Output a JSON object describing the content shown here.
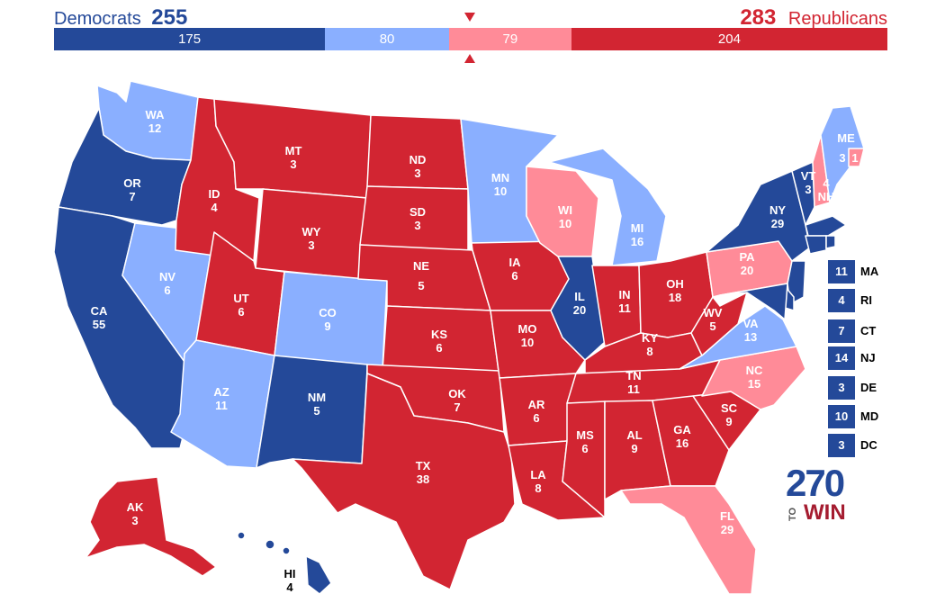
{
  "header": {
    "dem_name": "Democrats",
    "dem_total": "255",
    "rep_total": "283",
    "rep_name": "Republicans"
  },
  "bar": [
    {
      "label": "175",
      "value": 175,
      "color": "#244999"
    },
    {
      "label": "80",
      "value": 80,
      "color": "#8aafff"
    },
    {
      "label": "79",
      "value": 79,
      "color": "#ff8b98"
    },
    {
      "label": "204",
      "value": 204,
      "color": "#d22532"
    }
  ],
  "colors": {
    "safe_dem": "#244999",
    "lean_dem": "#8aafff",
    "lean_rep": "#ff8b98",
    "safe_rep": "#d22532"
  },
  "states": {
    "WA": {
      "abbr": "WA",
      "ev": "12"
    },
    "OR": {
      "abbr": "OR",
      "ev": "7"
    },
    "CA": {
      "abbr": "CA",
      "ev": "55"
    },
    "NV": {
      "abbr": "NV",
      "ev": "6"
    },
    "ID": {
      "abbr": "ID",
      "ev": "4"
    },
    "MT": {
      "abbr": "MT",
      "ev": "3"
    },
    "WY": {
      "abbr": "WY",
      "ev": "3"
    },
    "UT": {
      "abbr": "UT",
      "ev": "6"
    },
    "AZ": {
      "abbr": "AZ",
      "ev": "11"
    },
    "CO": {
      "abbr": "CO",
      "ev": "9"
    },
    "NM": {
      "abbr": "NM",
      "ev": "5"
    },
    "ND": {
      "abbr": "ND",
      "ev": "3"
    },
    "SD": {
      "abbr": "SD",
      "ev": "3"
    },
    "NE": {
      "abbr": "NE",
      "ev": "5"
    },
    "KS": {
      "abbr": "KS",
      "ev": "6"
    },
    "OK": {
      "abbr": "OK",
      "ev": "7"
    },
    "TX": {
      "abbr": "TX",
      "ev": "38"
    },
    "MN": {
      "abbr": "MN",
      "ev": "10"
    },
    "IA": {
      "abbr": "IA",
      "ev": "6"
    },
    "MO": {
      "abbr": "MO",
      "ev": "10"
    },
    "AR": {
      "abbr": "AR",
      "ev": "6"
    },
    "LA": {
      "abbr": "LA",
      "ev": "8"
    },
    "WI": {
      "abbr": "WI",
      "ev": "10"
    },
    "IL": {
      "abbr": "IL",
      "ev": "20"
    },
    "MI": {
      "abbr": "MI",
      "ev": "16"
    },
    "IN": {
      "abbr": "IN",
      "ev": "11"
    },
    "OH": {
      "abbr": "OH",
      "ev": "18"
    },
    "KY": {
      "abbr": "KY",
      "ev": "8"
    },
    "TN": {
      "abbr": "TN",
      "ev": "11"
    },
    "MS": {
      "abbr": "MS",
      "ev": "6"
    },
    "AL": {
      "abbr": "AL",
      "ev": "9"
    },
    "GA": {
      "abbr": "GA",
      "ev": "16"
    },
    "FL": {
      "abbr": "FL",
      "ev": "29"
    },
    "SC": {
      "abbr": "SC",
      "ev": "9"
    },
    "NC": {
      "abbr": "NC",
      "ev": "15"
    },
    "VA": {
      "abbr": "VA",
      "ev": "13"
    },
    "WV": {
      "abbr": "WV",
      "ev": "5"
    },
    "PA": {
      "abbr": "PA",
      "ev": "20"
    },
    "NY": {
      "abbr": "NY",
      "ev": "29"
    },
    "VT": {
      "abbr": "VT",
      "ev": "3"
    },
    "NH": {
      "abbr": "NH",
      "ev": "4"
    },
    "ME": {
      "abbr": "ME",
      "ev": "3"
    },
    "ME2": {
      "ev": "1"
    },
    "AK": {
      "abbr": "AK",
      "ev": "3"
    },
    "HI": {
      "abbr": "HI",
      "ev": "4"
    }
  },
  "small_states": [
    {
      "ev": "11",
      "abbr": "MA"
    },
    {
      "ev": "4",
      "abbr": "RI"
    },
    {
      "ev": "7",
      "abbr": "CT"
    },
    {
      "ev": "14",
      "abbr": "NJ"
    },
    {
      "ev": "3",
      "abbr": "DE"
    },
    {
      "ev": "10",
      "abbr": "MD"
    },
    {
      "ev": "3",
      "abbr": "DC"
    }
  ],
  "logo": {
    "number": "270",
    "to": "TO",
    "win": "WIN"
  }
}
